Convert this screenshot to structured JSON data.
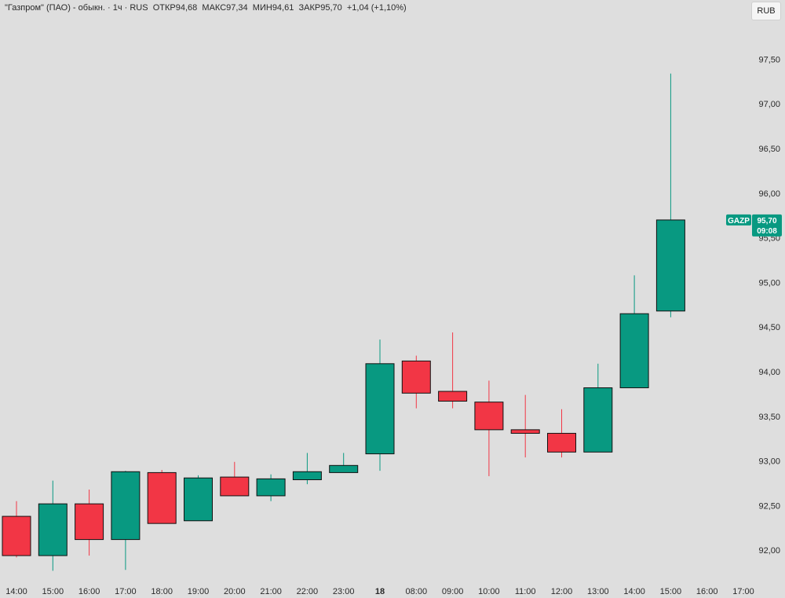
{
  "header": {
    "name": "\"Газпром\" (ПАО) - обыкн.",
    "sep1": " · ",
    "interval": "1ч",
    "sep2": " · ",
    "exchange": "RUS",
    "open_label": "ОТКР",
    "open_value": "94,68",
    "high_label": "МАКС",
    "high_value": "97,34",
    "low_label": "МИН",
    "low_value": "94,61",
    "close_label": "ЗАКР",
    "close_value": "95,70",
    "change": "+1,04 (+1,10%)"
  },
  "currency_button": "RUB",
  "price_tag": {
    "symbol": "GAZP",
    "price": "95,70",
    "countdown": "09:08",
    "color": "#089981"
  },
  "colors": {
    "up": "#089981",
    "down": "#f23645",
    "background": "#dedede"
  },
  "chart_data": {
    "type": "candlestick",
    "x_labels": [
      "14:00",
      "15:00",
      "16:00",
      "17:00",
      "18:00",
      "19:00",
      "20:00",
      "21:00",
      "22:00",
      "23:00",
      "18",
      "08:00",
      "09:00",
      "10:00",
      "11:00",
      "12:00",
      "13:00",
      "14:00",
      "15:00",
      "16:00",
      "17:00"
    ],
    "bold_labels": [
      "18"
    ],
    "y_ticks": [
      "92,00",
      "92,50",
      "93,00",
      "93,50",
      "94,00",
      "94,50",
      "95,00",
      "95,50",
      "96,00",
      "96,50",
      "97,00",
      "97,50"
    ],
    "y_tick_values": [
      92.0,
      92.5,
      93.0,
      93.5,
      94.0,
      94.5,
      95.0,
      95.5,
      96.0,
      96.5,
      97.0,
      97.5
    ],
    "ylim": [
      91.65,
      97.9
    ],
    "candles": [
      {
        "open": 92.38,
        "high": 92.55,
        "low": 91.92,
        "close": 91.94
      },
      {
        "open": 91.94,
        "high": 92.78,
        "low": 91.77,
        "close": 92.52
      },
      {
        "open": 92.52,
        "high": 92.68,
        "low": 91.94,
        "close": 92.12
      },
      {
        "open": 92.12,
        "high": 92.89,
        "low": 91.78,
        "close": 92.88
      },
      {
        "open": 92.87,
        "high": 92.9,
        "low": 92.3,
        "close": 92.3
      },
      {
        "open": 92.33,
        "high": 92.84,
        "low": 92.33,
        "close": 92.81
      },
      {
        "open": 92.82,
        "high": 92.99,
        "low": 92.61,
        "close": 92.61
      },
      {
        "open": 92.61,
        "high": 92.85,
        "low": 92.55,
        "close": 92.8
      },
      {
        "open": 92.79,
        "high": 93.09,
        "low": 92.74,
        "close": 92.88
      },
      {
        "open": 92.87,
        "high": 93.09,
        "low": 92.87,
        "close": 92.95
      },
      {
        "open": 93.08,
        "high": 94.36,
        "low": 92.89,
        "close": 94.09
      },
      {
        "open": 94.12,
        "high": 94.18,
        "low": 93.59,
        "close": 93.76
      },
      {
        "open": 93.78,
        "high": 94.44,
        "low": 93.59,
        "close": 93.67
      },
      {
        "open": 93.66,
        "high": 93.9,
        "low": 92.83,
        "close": 93.35
      },
      {
        "open": 93.35,
        "high": 93.74,
        "low": 93.04,
        "close": 93.31
      },
      {
        "open": 93.31,
        "high": 93.58,
        "low": 93.04,
        "close": 93.1
      },
      {
        "open": 93.1,
        "high": 94.09,
        "low": 93.1,
        "close": 93.82
      },
      {
        "open": 93.82,
        "high": 95.08,
        "low": 93.82,
        "close": 94.65
      },
      {
        "open": 94.68,
        "high": 97.34,
        "low": 94.61,
        "close": 95.7
      }
    ]
  }
}
